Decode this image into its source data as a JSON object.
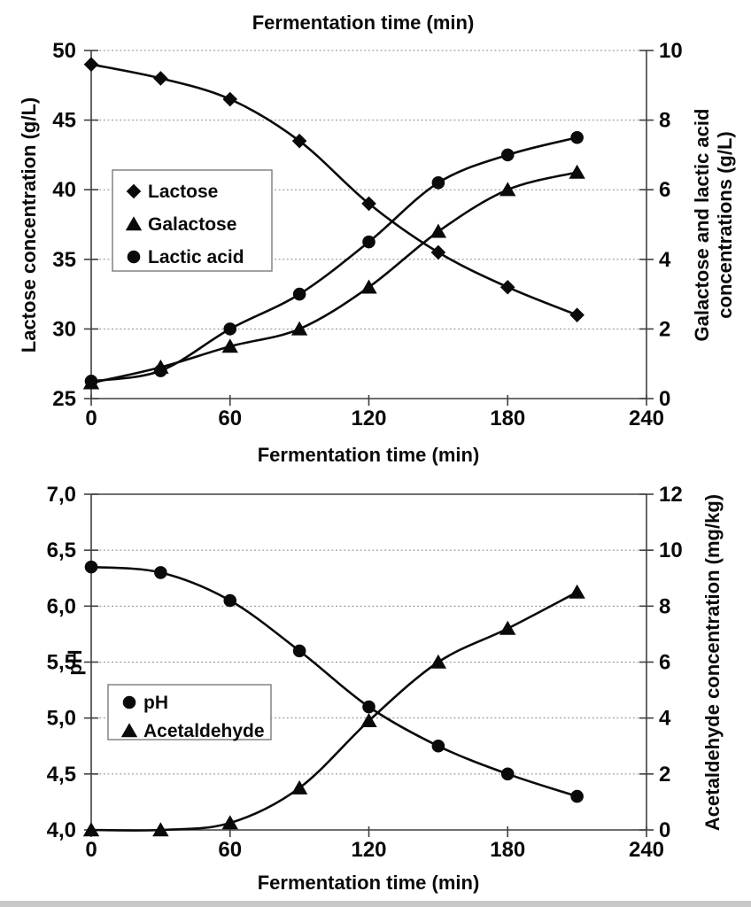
{
  "figure": {
    "background": "#ffffff",
    "ink_color": "#0a0a0a",
    "grid_color": "#8a8a8a",
    "axis_color": "#3f3f3f"
  },
  "chart_data": [
    {
      "type": "line",
      "title": "Fermentation time (min)",
      "xlabel": "Fermentation time (min)",
      "ylabel_left": "Lactose concentration (g/L)",
      "ylabel_right_lines": [
        "Galactose and lactic acid",
        "concentrations (g/L)"
      ],
      "x": [
        0,
        30,
        60,
        90,
        120,
        150,
        180,
        210
      ],
      "xlim": [
        0,
        240
      ],
      "xticks": [
        {
          "label": "0",
          "value": 0
        },
        {
          "label": "60",
          "value": 60
        },
        {
          "label": "120",
          "value": 120
        },
        {
          "label": "180",
          "value": 180
        },
        {
          "label": "240",
          "value": 240
        }
      ],
      "ylim_left": [
        25,
        50
      ],
      "yticks_left": [
        {
          "label": "25",
          "value": 25
        },
        {
          "label": "30",
          "value": 30
        },
        {
          "label": "35",
          "value": 35
        },
        {
          "label": "40",
          "value": 40
        },
        {
          "label": "45",
          "value": 45
        },
        {
          "label": "50",
          "value": 50
        }
      ],
      "ylim_right": [
        0,
        10
      ],
      "yticks_right": [
        {
          "label": "0",
          "value": 0
        },
        {
          "label": "2",
          "value": 2
        },
        {
          "label": "4",
          "value": 4
        },
        {
          "label": "6",
          "value": 6
        },
        {
          "label": "8",
          "value": 8
        },
        {
          "label": "10",
          "value": 10
        }
      ],
      "grid": "horizontal-dashed",
      "top_border": "dashed",
      "legend_position": "upper-left-inside",
      "series": [
        {
          "name": "Lactose",
          "axis": "left",
          "marker": "diamond",
          "values": [
            49,
            48,
            46.5,
            43.5,
            39,
            35.5,
            33,
            31
          ]
        },
        {
          "name": "Galactose",
          "axis": "right",
          "marker": "triangle",
          "values": [
            0.45,
            0.9,
            1.5,
            2,
            3.2,
            4.8,
            6,
            6.5
          ]
        },
        {
          "name": "Lactic acid",
          "axis": "right",
          "marker": "circle",
          "values": [
            0.5,
            0.8,
            2,
            3,
            4.5,
            6.2,
            7,
            7.5
          ]
        }
      ]
    },
    {
      "type": "line",
      "title": "",
      "xlabel": "Fermentation time (min)",
      "ylabel_left": "pH",
      "ylabel_right_lines": [
        "Acetaldehyde concentration (mg/kg)"
      ],
      "x": [
        0,
        30,
        60,
        90,
        120,
        150,
        180,
        210
      ],
      "xlim": [
        0,
        240
      ],
      "xticks": [
        {
          "label": "0",
          "value": 0
        },
        {
          "label": "60",
          "value": 60
        },
        {
          "label": "120",
          "value": 120
        },
        {
          "label": "180",
          "value": 180
        },
        {
          "label": "240",
          "value": 240
        }
      ],
      "ylim_left": [
        4,
        7
      ],
      "yticks_left": [
        {
          "label": "4,0",
          "value": 4
        },
        {
          "label": "4,5",
          "value": 4.5
        },
        {
          "label": "5,0",
          "value": 5
        },
        {
          "label": "5,5",
          "value": 5.5
        },
        {
          "label": "6,0",
          "value": 6
        },
        {
          "label": "6,5",
          "value": 6.5
        },
        {
          "label": "7,0",
          "value": 7
        }
      ],
      "ylim_right": [
        0,
        12
      ],
      "yticks_right": [
        {
          "label": "0",
          "value": 0
        },
        {
          "label": "2",
          "value": 2
        },
        {
          "label": "4",
          "value": 4
        },
        {
          "label": "6",
          "value": 6
        },
        {
          "label": "8",
          "value": 8
        },
        {
          "label": "10",
          "value": 10
        },
        {
          "label": "12",
          "value": 12
        }
      ],
      "grid": "horizontal-dashed",
      "top_border": "solid",
      "legend_position": "middle-left-inside",
      "series": [
        {
          "name": "pH",
          "axis": "left",
          "marker": "circle",
          "values": [
            6.35,
            6.3,
            6.05,
            5.6,
            5.1,
            4.75,
            4.5,
            4.3
          ]
        },
        {
          "name": "Acetaldehyde",
          "axis": "right",
          "marker": "triangle",
          "values": [
            0,
            0,
            0.25,
            1.5,
            3.9,
            6,
            7.2,
            8.5
          ]
        }
      ]
    }
  ]
}
